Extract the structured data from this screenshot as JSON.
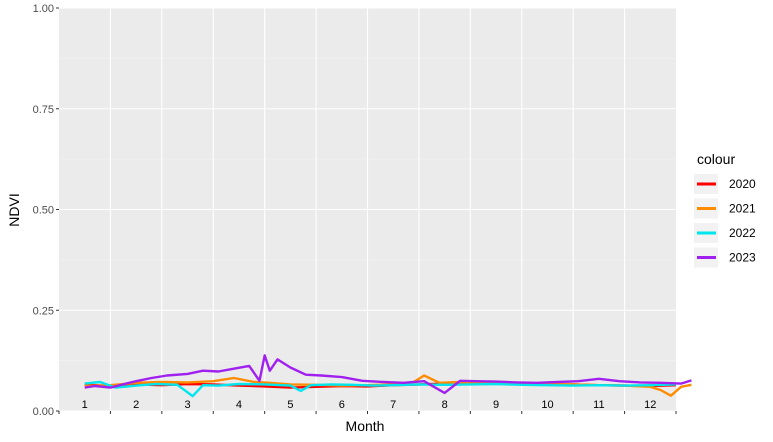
{
  "chart_data": {
    "type": "line",
    "xlabel": "Month",
    "ylabel": "NDVI",
    "ylim": [
      0,
      1
    ],
    "yticks": [
      "0.00",
      "0.25",
      "0.50",
      "0.75",
      "1.00"
    ],
    "months": [
      "1",
      "2",
      "3",
      "4",
      "5",
      "6",
      "7",
      "8",
      "9",
      "10",
      "11",
      "12"
    ],
    "grid": true,
    "legend": {
      "title": "colour",
      "position": "right"
    },
    "series": [
      {
        "name": "2020",
        "color": "#ff0000",
        "x": [
          1.0,
          1.5,
          2.0,
          2.5,
          3.0,
          3.5,
          4.0,
          4.5,
          5.0,
          5.5,
          6.0,
          6.5,
          7.0,
          7.5,
          8.0,
          8.5,
          9.0,
          9.5,
          10.0,
          10.5,
          11.0,
          11.5,
          12.0,
          12.5
        ],
        "y": [
          0.065,
          0.062,
          0.066,
          0.064,
          0.067,
          0.066,
          0.063,
          0.061,
          0.058,
          0.06,
          0.062,
          0.061,
          0.064,
          0.066,
          0.068,
          0.07,
          0.069,
          0.067,
          0.065,
          0.066,
          0.064,
          0.063,
          0.062,
          0.064
        ]
      },
      {
        "name": "2021",
        "color": "#ff8c00",
        "x": [
          1.0,
          1.5,
          2.0,
          2.5,
          3.0,
          3.5,
          3.9,
          4.3,
          4.6,
          5.0,
          5.5,
          6.0,
          6.5,
          7.0,
          7.4,
          7.6,
          7.9,
          8.3,
          8.8,
          9.2,
          9.6,
          10.0,
          10.5,
          11.0,
          11.5,
          12.0,
          12.2,
          12.4,
          12.6,
          12.8
        ],
        "y": [
          0.062,
          0.064,
          0.07,
          0.072,
          0.071,
          0.074,
          0.082,
          0.072,
          0.07,
          0.066,
          0.065,
          0.063,
          0.064,
          0.066,
          0.072,
          0.088,
          0.07,
          0.072,
          0.07,
          0.071,
          0.069,
          0.067,
          0.066,
          0.064,
          0.063,
          0.06,
          0.052,
          0.038,
          0.06,
          0.065
        ]
      },
      {
        "name": "2022",
        "color": "#00e5ee",
        "x": [
          1.0,
          1.3,
          1.6,
          2.0,
          2.4,
          2.8,
          3.1,
          3.3,
          3.6,
          4.0,
          4.5,
          5.0,
          5.2,
          5.4,
          5.8,
          6.2,
          6.6,
          7.0,
          7.5,
          8.0,
          8.5,
          9.0,
          9.5,
          10.0,
          10.5,
          11.0,
          11.5,
          12.0,
          12.5
        ],
        "y": [
          0.068,
          0.072,
          0.058,
          0.063,
          0.067,
          0.065,
          0.037,
          0.064,
          0.063,
          0.067,
          0.066,
          0.063,
          0.05,
          0.064,
          0.066,
          0.065,
          0.063,
          0.064,
          0.066,
          0.065,
          0.066,
          0.067,
          0.065,
          0.064,
          0.063,
          0.064,
          0.063,
          0.064,
          0.066
        ]
      },
      {
        "name": "2023",
        "color": "#a020f0",
        "x": [
          1.0,
          1.2,
          1.5,
          1.8,
          2.0,
          2.3,
          2.6,
          3.0,
          3.3,
          3.6,
          3.9,
          4.2,
          4.4,
          4.5,
          4.6,
          4.75,
          5.0,
          5.3,
          5.6,
          6.0,
          6.4,
          6.8,
          7.2,
          7.6,
          8.0,
          8.3,
          8.6,
          9.0,
          9.4,
          9.8,
          10.2,
          10.6,
          11.0,
          11.4,
          11.8,
          12.2,
          12.6,
          12.8
        ],
        "y": [
          0.058,
          0.062,
          0.058,
          0.068,
          0.074,
          0.082,
          0.088,
          0.092,
          0.1,
          0.098,
          0.105,
          0.112,
          0.075,
          0.138,
          0.1,
          0.128,
          0.108,
          0.09,
          0.088,
          0.084,
          0.075,
          0.072,
          0.07,
          0.074,
          0.045,
          0.075,
          0.074,
          0.073,
          0.071,
          0.07,
          0.072,
          0.074,
          0.08,
          0.074,
          0.071,
          0.07,
          0.068,
          0.076
        ]
      }
    ]
  }
}
